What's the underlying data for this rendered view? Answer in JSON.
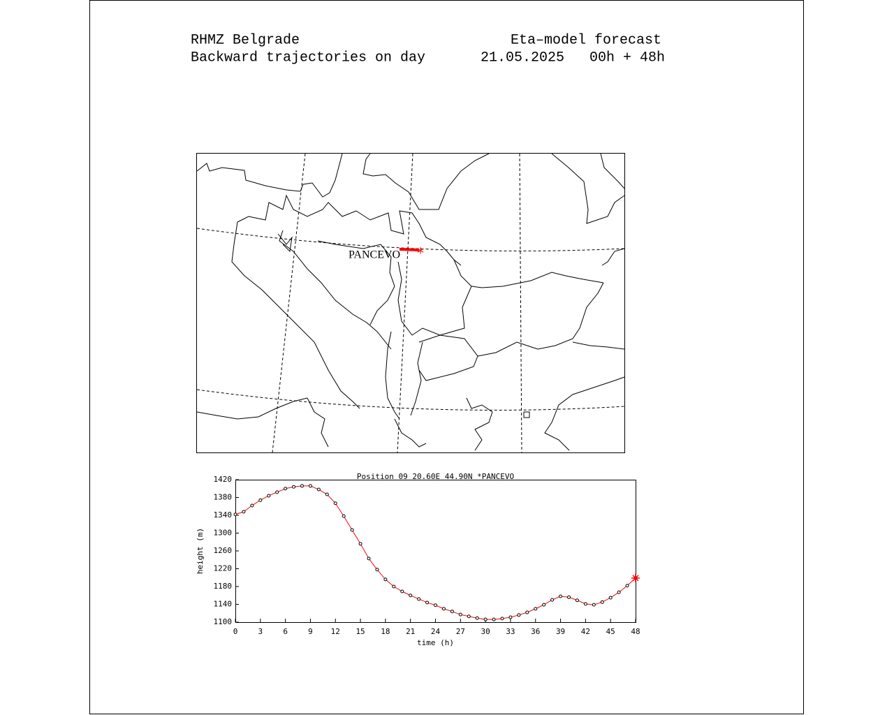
{
  "header": {
    "org": "RHMZ Belgrade",
    "subtitle": "Backward trajectories on day",
    "model": "Eta–model forecast",
    "run": "21.05.2025   00h + 48h"
  },
  "map": {
    "label": "PANCEVO"
  },
  "chart_data": {
    "type": "line",
    "title": "Position 09 20.60E 44.90N *PANCEVO",
    "x_label": "time (h)",
    "y_label": "height (m)",
    "x": [
      0,
      1,
      2,
      3,
      4,
      5,
      6,
      7,
      8,
      9,
      10,
      11,
      12,
      13,
      14,
      15,
      16,
      17,
      18,
      19,
      20,
      21,
      22,
      23,
      24,
      25,
      26,
      27,
      28,
      29,
      30,
      31,
      32,
      33,
      34,
      35,
      36,
      37,
      38,
      39,
      40,
      41,
      42,
      43,
      44,
      45,
      46,
      47,
      48
    ],
    "series": [
      {
        "name": "PANCEVO",
        "color": "#ff0000",
        "values": [
          1342,
          1348,
          1362,
          1374,
          1384,
          1392,
          1400,
          1404,
          1406,
          1406,
          1398,
          1387,
          1367,
          1338,
          1307,
          1276,
          1243,
          1218,
          1196,
          1180,
          1169,
          1160,
          1152,
          1144,
          1138,
          1130,
          1124,
          1117,
          1113,
          1109,
          1106,
          1106,
          1108,
          1111,
          1116,
          1122,
          1130,
          1139,
          1150,
          1158,
          1156,
          1149,
          1141,
          1139,
          1145,
          1155,
          1167,
          1182,
          1199
        ]
      }
    ],
    "xlim": [
      0,
      48
    ],
    "xticks": [
      0,
      3,
      6,
      9,
      12,
      15,
      18,
      21,
      24,
      27,
      30,
      33,
      36,
      39,
      42,
      45,
      48
    ],
    "ylim": [
      1100,
      1420
    ],
    "yticks": [
      1100,
      1140,
      1180,
      1220,
      1260,
      1300,
      1340,
      1380,
      1420
    ]
  }
}
